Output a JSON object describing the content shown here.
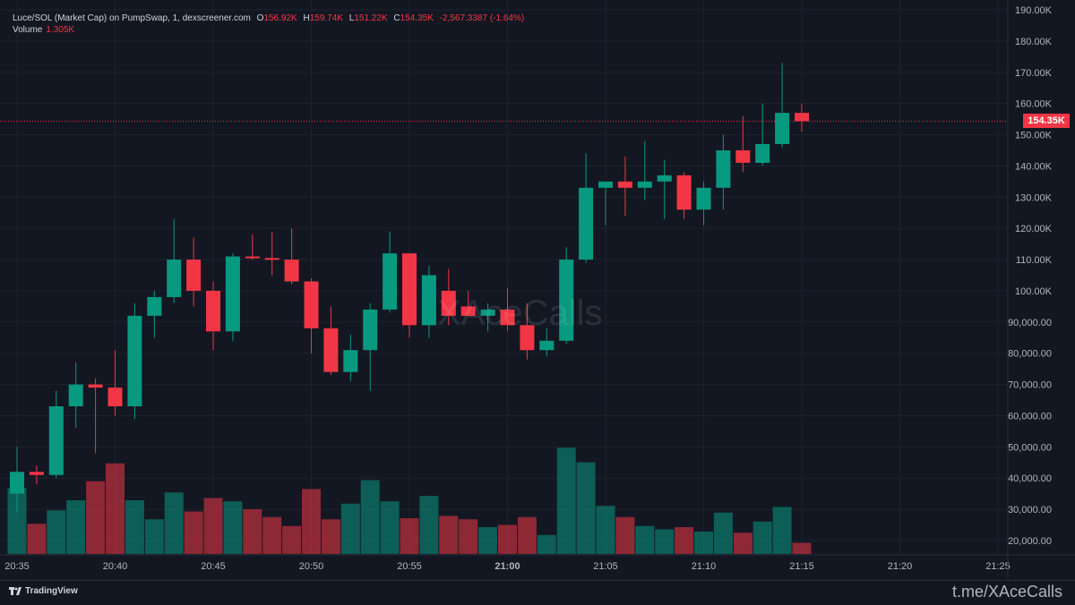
{
  "header": {
    "symbol": "Luce/SOL (Market Cap) on PumpSwap, 1, dexscreener.com",
    "o_label": "O",
    "o_value": "156.92K",
    "h_label": "H",
    "h_value": "159.74K",
    "l_label": "L",
    "l_value": "151.22K",
    "c_label": "C",
    "c_value": "154.35K",
    "change": "-2,567.3387 (-1.64%)",
    "volume_label": "Volume",
    "volume_value": "1.305K"
  },
  "price_tag": "154.35K",
  "watermark": "XAceCalls",
  "footer": {
    "tradingview": "TradingView",
    "telegram": "t.me/XAceCalls"
  },
  "colors": {
    "up": "#089981",
    "down": "#f23645",
    "background": "#131722",
    "grid": "#1e222d"
  },
  "chart_data": {
    "type": "candlestick",
    "y_axis": {
      "min": 15000,
      "max": 190000,
      "ticks": [
        {
          "v": 190000,
          "label": "190.00K"
        },
        {
          "v": 180000,
          "label": "180.00K"
        },
        {
          "v": 170000,
          "label": "170.00K"
        },
        {
          "v": 160000,
          "label": "160.00K"
        },
        {
          "v": 150000,
          "label": "150.00K"
        },
        {
          "v": 140000,
          "label": "140.00K"
        },
        {
          "v": 130000,
          "label": "130.00K"
        },
        {
          "v": 120000,
          "label": "120.00K"
        },
        {
          "v": 110000,
          "label": "110.00K"
        },
        {
          "v": 100000,
          "label": "100.00K"
        },
        {
          "v": 90000,
          "label": "90,000.00"
        },
        {
          "v": 80000,
          "label": "80,000.00"
        },
        {
          "v": 70000,
          "label": "70,000.00"
        },
        {
          "v": 60000,
          "label": "60,000.00"
        },
        {
          "v": 50000,
          "label": "50,000.00"
        },
        {
          "v": 40000,
          "label": "40,000.00"
        },
        {
          "v": 30000,
          "label": "30,000.00"
        },
        {
          "v": 20000,
          "label": "20,000.00"
        }
      ]
    },
    "x_axis": {
      "ticks": [
        {
          "i": 0,
          "label": "20:35"
        },
        {
          "i": 5,
          "label": "20:40"
        },
        {
          "i": 10,
          "label": "20:45"
        },
        {
          "i": 15,
          "label": "20:50"
        },
        {
          "i": 20,
          "label": "20:55"
        },
        {
          "i": 25,
          "label": "21:00",
          "bold": true
        },
        {
          "i": 30,
          "label": "21:05"
        },
        {
          "i": 35,
          "label": "21:10"
        },
        {
          "i": 40,
          "label": "21:15"
        },
        {
          "i": 45,
          "label": "21:20"
        },
        {
          "i": 50,
          "label": "21:25"
        }
      ]
    },
    "last_price": 154350,
    "candles": [
      {
        "o": 35000,
        "h": 50000,
        "l": 29000,
        "c": 42000
      },
      {
        "o": 42000,
        "h": 44000,
        "l": 38000,
        "c": 41000
      },
      {
        "o": 41000,
        "h": 68000,
        "l": 40000,
        "c": 63000
      },
      {
        "o": 63000,
        "h": 77000,
        "l": 56000,
        "c": 70000
      },
      {
        "o": 70000,
        "h": 72000,
        "l": 48000,
        "c": 69000
      },
      {
        "o": 69000,
        "h": 81000,
        "l": 60000,
        "c": 63000
      },
      {
        "o": 63000,
        "h": 96000,
        "l": 59000,
        "c": 92000
      },
      {
        "o": 92000,
        "h": 100000,
        "l": 85000,
        "c": 98000
      },
      {
        "o": 98000,
        "h": 123000,
        "l": 96000,
        "c": 110000
      },
      {
        "o": 110000,
        "h": 117000,
        "l": 95000,
        "c": 100000
      },
      {
        "o": 100000,
        "h": 103000,
        "l": 81000,
        "c": 87000
      },
      {
        "o": 87000,
        "h": 112000,
        "l": 84000,
        "c": 111000
      },
      {
        "o": 111000,
        "h": 118000,
        "l": 110000,
        "c": 110500
      },
      {
        "o": 110500,
        "h": 119000,
        "l": 105000,
        "c": 110000
      },
      {
        "o": 110000,
        "h": 120000,
        "l": 102000,
        "c": 103000
      },
      {
        "o": 103000,
        "h": 104000,
        "l": 80000,
        "c": 88000
      },
      {
        "o": 88000,
        "h": 95000,
        "l": 73000,
        "c": 74000
      },
      {
        "o": 74000,
        "h": 86000,
        "l": 71000,
        "c": 81000
      },
      {
        "o": 81000,
        "h": 96000,
        "l": 68000,
        "c": 94000
      },
      {
        "o": 94000,
        "h": 119000,
        "l": 93000,
        "c": 112000
      },
      {
        "o": 112000,
        "h": 112000,
        "l": 85000,
        "c": 89000
      },
      {
        "o": 89000,
        "h": 108000,
        "l": 85000,
        "c": 105000
      },
      {
        "o": 100000,
        "h": 107000,
        "l": 89000,
        "c": 92000
      },
      {
        "o": 95000,
        "h": 100000,
        "l": 92000,
        "c": 92000
      },
      {
        "o": 92000,
        "h": 96000,
        "l": 87000,
        "c": 94000
      },
      {
        "o": 94000,
        "h": 101000,
        "l": 87000,
        "c": 89000
      },
      {
        "o": 89000,
        "h": 96000,
        "l": 78000,
        "c": 81000
      },
      {
        "o": 81000,
        "h": 88000,
        "l": 79000,
        "c": 84000
      },
      {
        "o": 84000,
        "h": 114000,
        "l": 83000,
        "c": 110000
      },
      {
        "o": 110000,
        "h": 144000,
        "l": 109000,
        "c": 133000
      },
      {
        "o": 133000,
        "h": 134000,
        "l": 121000,
        "c": 135000
      },
      {
        "o": 135000,
        "h": 143000,
        "l": 124000,
        "c": 133000
      },
      {
        "o": 133000,
        "h": 148000,
        "l": 129000,
        "c": 135000
      },
      {
        "o": 135000,
        "h": 142000,
        "l": 123000,
        "c": 137000
      },
      {
        "o": 137000,
        "h": 138000,
        "l": 123000,
        "c": 126000
      },
      {
        "o": 126000,
        "h": 135000,
        "l": 121000,
        "c": 133000
      },
      {
        "o": 133000,
        "h": 150000,
        "l": 126000,
        "c": 145000
      },
      {
        "o": 145000,
        "h": 156000,
        "l": 138000,
        "c": 141000
      },
      {
        "o": 141000,
        "h": 160000,
        "l": 140000,
        "c": 147000
      },
      {
        "o": 147000,
        "h": 173000,
        "l": 146000,
        "c": 157000
      },
      {
        "o": 157000,
        "h": 160000,
        "l": 151000,
        "c": 154350
      }
    ],
    "volumes": [
      0.59,
      0.27,
      0.39,
      0.48,
      0.65,
      0.81,
      0.48,
      0.31,
      0.55,
      0.38,
      0.5,
      0.47,
      0.4,
      0.33,
      0.25,
      0.58,
      0.31,
      0.45,
      0.66,
      0.47,
      0.32,
      0.52,
      0.34,
      0.31,
      0.24,
      0.26,
      0.33,
      0.17,
      0.95,
      0.82,
      0.43,
      0.33,
      0.25,
      0.22,
      0.24,
      0.2,
      0.37,
      0.19,
      0.29,
      0.42,
      0.1
    ]
  }
}
